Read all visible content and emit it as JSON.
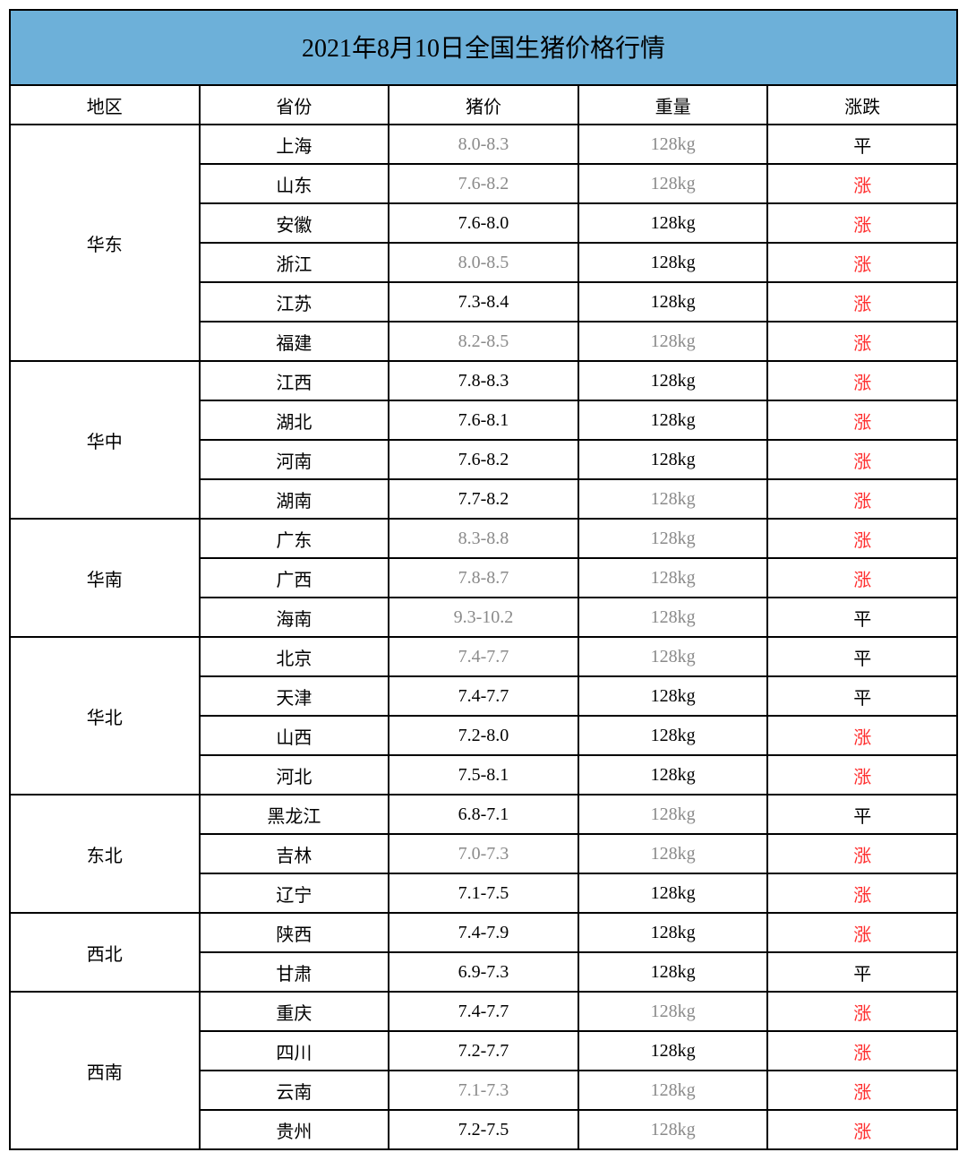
{
  "title": "2021年8月10日全国生猪价格行情",
  "colors": {
    "header_bg": "#6db0d9",
    "border": "#000000",
    "text": "#000000",
    "gray_text": "#8a8a8a",
    "rise_text": "#ff2e2e"
  },
  "columns": [
    "地区",
    "省份",
    "猪价",
    "重量",
    "涨跌"
  ],
  "trend_labels": {
    "flat": "平",
    "rise": "涨"
  },
  "rows": [
    {
      "region": "华东",
      "region_span": 6,
      "province": "上海",
      "price": "8.0-8.3",
      "price_gray": true,
      "weight": "128kg",
      "weight_gray": true,
      "trend": "flat"
    },
    {
      "province": "山东",
      "price": "7.6-8.2",
      "price_gray": true,
      "weight": "128kg",
      "weight_gray": true,
      "trend": "rise"
    },
    {
      "province": "安徽",
      "price": "7.6-8.0",
      "price_gray": false,
      "weight": "128kg",
      "weight_gray": false,
      "trend": "rise"
    },
    {
      "province": "浙江",
      "price": "8.0-8.5",
      "price_gray": true,
      "weight": "128kg",
      "weight_gray": false,
      "trend": "rise"
    },
    {
      "province": "江苏",
      "price": "7.3-8.4",
      "price_gray": false,
      "weight": "128kg",
      "weight_gray": false,
      "trend": "rise"
    },
    {
      "province": "福建",
      "price": "8.2-8.5",
      "price_gray": true,
      "weight": "128kg",
      "weight_gray": true,
      "trend": "rise"
    },
    {
      "region": "华中",
      "region_span": 4,
      "province": "江西",
      "price": "7.8-8.3",
      "price_gray": false,
      "weight": "128kg",
      "weight_gray": false,
      "trend": "rise"
    },
    {
      "province": "湖北",
      "price": "7.6-8.1",
      "price_gray": false,
      "weight": "128kg",
      "weight_gray": false,
      "trend": "rise"
    },
    {
      "province": "河南",
      "price": "7.6-8.2",
      "price_gray": false,
      "weight": "128kg",
      "weight_gray": false,
      "trend": "rise"
    },
    {
      "province": "湖南",
      "price": "7.7-8.2",
      "price_gray": false,
      "weight": "128kg",
      "weight_gray": true,
      "trend": "rise"
    },
    {
      "region": "华南",
      "region_span": 3,
      "province": "广东",
      "price": "8.3-8.8",
      "price_gray": true,
      "weight": "128kg",
      "weight_gray": true,
      "trend": "rise"
    },
    {
      "province": "广西",
      "price": "7.8-8.7",
      "price_gray": true,
      "weight": "128kg",
      "weight_gray": true,
      "trend": "rise"
    },
    {
      "province": "海南",
      "price": "9.3-10.2",
      "price_gray": true,
      "weight": "128kg",
      "weight_gray": true,
      "trend": "flat"
    },
    {
      "region": "华北",
      "region_span": 4,
      "province": "北京",
      "price": "7.4-7.7",
      "price_gray": true,
      "weight": "128kg",
      "weight_gray": true,
      "trend": "flat"
    },
    {
      "province": "天津",
      "price": "7.4-7.7",
      "price_gray": false,
      "weight": "128kg",
      "weight_gray": false,
      "trend": "flat"
    },
    {
      "province": "山西",
      "price": "7.2-8.0",
      "price_gray": false,
      "weight": "128kg",
      "weight_gray": false,
      "trend": "rise"
    },
    {
      "province": "河北",
      "price": "7.5-8.1",
      "price_gray": false,
      "weight": "128kg",
      "weight_gray": false,
      "trend": "rise"
    },
    {
      "region": "东北",
      "region_span": 3,
      "province": "黑龙江",
      "price": "6.8-7.1",
      "price_gray": false,
      "weight": "128kg",
      "weight_gray": true,
      "trend": "flat"
    },
    {
      "province": "吉林",
      "price": "7.0-7.3",
      "price_gray": true,
      "weight": "128kg",
      "weight_gray": true,
      "trend": "rise"
    },
    {
      "province": "辽宁",
      "price": "7.1-7.5",
      "price_gray": false,
      "weight": "128kg",
      "weight_gray": false,
      "trend": "rise"
    },
    {
      "region": "西北",
      "region_span": 2,
      "province": "陕西",
      "price": "7.4-7.9",
      "price_gray": false,
      "weight": "128kg",
      "weight_gray": false,
      "trend": "rise"
    },
    {
      "province": "甘肃",
      "price": "6.9-7.3",
      "price_gray": false,
      "weight": "128kg",
      "weight_gray": false,
      "trend": "flat"
    },
    {
      "region": "西南",
      "region_span": 4,
      "province": "重庆",
      "price": "7.4-7.7",
      "price_gray": false,
      "weight": "128kg",
      "weight_gray": true,
      "trend": "rise"
    },
    {
      "province": "四川",
      "price": "7.2-7.7",
      "price_gray": false,
      "weight": "128kg",
      "weight_gray": false,
      "trend": "rise"
    },
    {
      "province": "云南",
      "price": "7.1-7.3",
      "price_gray": true,
      "weight": "128kg",
      "weight_gray": true,
      "trend": "rise"
    },
    {
      "province": "贵州",
      "price": "7.2-7.5",
      "price_gray": false,
      "weight": "128kg",
      "weight_gray": true,
      "trend": "rise"
    }
  ]
}
